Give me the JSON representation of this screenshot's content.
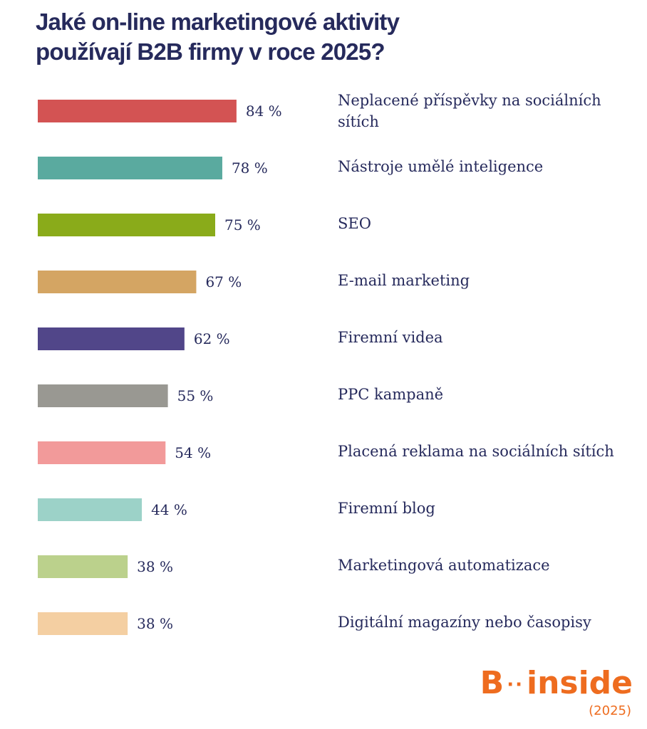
{
  "header": {
    "title_line1": "Jaké on-line marketingové aktivity",
    "title_line2": "používají B2B firmy v roce 2025?"
  },
  "chart_data": {
    "type": "bar",
    "orientation": "horizontal",
    "title": "Jaké on-line marketingové aktivity používají B2B firmy v roce 2025?",
    "categories": [
      "Neplacené příspěvky na sociálních sítích",
      "Nástroje umělé inteligence",
      "SEO",
      "E-mail marketing",
      "Firemní videa",
      "PPC kampaně",
      "Placená reklama na sociálních sítích",
      "Firemní blog",
      "Marketingová automatizace",
      "Digitální magazíny nebo časopisy"
    ],
    "values": [
      84,
      78,
      75,
      67,
      62,
      55,
      54,
      44,
      38,
      38
    ],
    "value_labels": [
      "84 %",
      "78 %",
      "75 %",
      "67 %",
      "62 %",
      "55 %",
      "54 %",
      "44 %",
      "38 %",
      "38 %"
    ],
    "colors": [
      "#d35353",
      "#5aaa9f",
      "#8aab1a",
      "#d4a563",
      "#514689",
      "#999892",
      "#f29a9a",
      "#9cd2c8",
      "#bbd18c",
      "#f4cfa2"
    ],
    "xlim": [
      0,
      100
    ],
    "grid": false,
    "legend": "none"
  },
  "brand": {
    "logo_b": "B",
    "logo_dots": "··",
    "logo_word": "inside",
    "year": "(2025)",
    "color": "#ee6c1f"
  }
}
